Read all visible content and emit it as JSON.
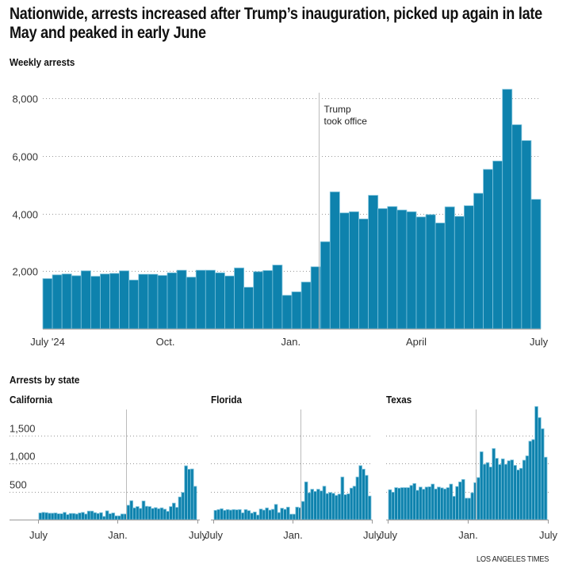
{
  "header": {
    "title": "Nationwide, arrests increased after Trump’s inauguration, picked up again in late May and peaked in early June",
    "main_subtitle": "Weekly arrests",
    "states_subtitle": "Arrests by state"
  },
  "footer": {
    "credit": "LOS ANGELES TIMES"
  },
  "colors": {
    "bar": "#0e82ad",
    "bar_outline": "#7fc3dc",
    "gridline": "#999999",
    "event_line": "#bbbbbb"
  },
  "chart_data": [
    {
      "id": "national",
      "type": "bar",
      "title": "Weekly arrests",
      "xlabel": "",
      "ylabel": "",
      "ylim": [
        0,
        8000
      ],
      "yticks": [
        2000,
        4000,
        6000,
        8000
      ],
      "ytick_labels": [
        "2,000",
        "4,000",
        "6,000",
        "8,000"
      ],
      "grid": true,
      "x_tick_labels": [
        {
          "label": "July '24",
          "week_index": 0.5
        },
        {
          "label": "Oct.",
          "week_index": 12.8
        },
        {
          "label": "Jan.",
          "week_index": 25.9
        },
        {
          "label": "April",
          "week_index": 39
        },
        {
          "label": "July",
          "week_index": 51.8
        }
      ],
      "annotation": {
        "text_lines": [
          "Trump",
          "took office"
        ],
        "week_index": 28.8
      },
      "values": [
        1740,
        1870,
        1900,
        1840,
        2010,
        1820,
        1900,
        1920,
        2010,
        1690,
        1890,
        1890,
        1850,
        1940,
        2030,
        1790,
        2030,
        2030,
        1940,
        1830,
        2110,
        1440,
        1980,
        2020,
        2210,
        1160,
        1280,
        1620,
        2150,
        3020,
        4750,
        4020,
        4060,
        3810,
        4630,
        4170,
        4240,
        4120,
        4060,
        3880,
        3960,
        3670,
        4230,
        3900,
        4270,
        4700,
        5530,
        5820,
        8310,
        7080,
        6530,
        4490
      ]
    },
    {
      "id": "california",
      "type": "bar",
      "title": "California",
      "ylim": [
        0,
        2000
      ],
      "yticks": [
        500,
        1000,
        1500
      ],
      "ytick_labels": [
        "500",
        "1,000",
        "1,500"
      ],
      "grid": true,
      "x_tick_labels": [
        "July",
        "Jan.",
        "July"
      ],
      "event_week_index": 28.7,
      "values": [
        119,
        129,
        124,
        114,
        114,
        119,
        105,
        105,
        129,
        90,
        110,
        110,
        100,
        119,
        129,
        100,
        152,
        152,
        124,
        110,
        124,
        57,
        157,
        105,
        119,
        67,
        67,
        100,
        100,
        257,
        338,
        210,
        233,
        200,
        333,
        238,
        233,
        200,
        214,
        195,
        210,
        186,
        148,
        233,
        295,
        219,
        405,
        486,
        962,
        900,
        905,
        595
      ]
    },
    {
      "id": "florida",
      "type": "bar",
      "title": "Florida",
      "ylim": [
        0,
        2000
      ],
      "yticks": [
        500,
        1000,
        1500
      ],
      "grid": true,
      "x_tick_labels": [
        "July",
        "Jan.",
        "July"
      ],
      "event_week_index": 28.7,
      "values": [
        165,
        179,
        194,
        165,
        179,
        170,
        179,
        175,
        179,
        121,
        179,
        160,
        116,
        136,
        82,
        189,
        170,
        209,
        170,
        184,
        272,
        126,
        204,
        184,
        223,
        97,
        97,
        223,
        213,
        325,
        674,
        480,
        543,
        504,
        543,
        514,
        597,
        466,
        485,
        470,
        432,
        456,
        762,
        446,
        461,
        563,
        597,
        762,
        965,
        902,
        791,
        422
      ]
    },
    {
      "id": "texas",
      "type": "bar",
      "title": "Texas",
      "ylim": [
        0,
        2000
      ],
      "yticks": [
        500,
        1000,
        1500
      ],
      "grid": true,
      "x_tick_labels": [
        "July",
        "Jan.",
        "July"
      ],
      "event_week_index": 28.7,
      "values": [
        534,
        490,
        572,
        563,
        572,
        572,
        572,
        611,
        645,
        524,
        582,
        543,
        582,
        587,
        635,
        548,
        582,
        567,
        548,
        572,
        635,
        417,
        592,
        674,
        718,
        383,
        383,
        480,
        660,
        752,
        1213,
        989,
        1019,
        941,
        1271,
        1096,
        985,
        1086,
        989,
        1052,
        1067,
        970,
        888,
        917,
        1062,
        1140,
        1402,
        1431,
        2022,
        1824,
        1625,
        1116
      ]
    }
  ]
}
